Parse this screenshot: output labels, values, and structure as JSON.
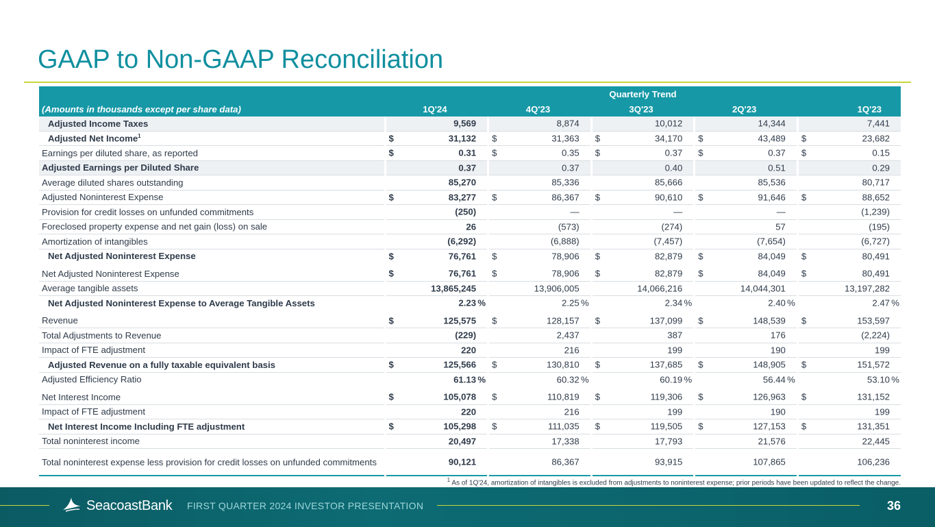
{
  "title": "GAAP to Non-GAAP Reconciliation",
  "table": {
    "note": "(Amounts in thousands except per share data)",
    "group_header": "Quarterly Trend",
    "periods": [
      "1Q'24",
      "4Q'23",
      "3Q'23",
      "2Q'23",
      "1Q'23"
    ],
    "rows": [
      {
        "label": "Adjusted Income Taxes",
        "values": [
          "9,569",
          "8,874",
          "10,012",
          "14,344",
          "7,441"
        ]
      },
      {
        "label": "Adjusted Net Income",
        "sup": "1",
        "values": [
          "31,132",
          "31,363",
          "34,170",
          "43,489",
          "23,682"
        ]
      },
      {
        "label": "Earnings per diluted share, as reported",
        "values": [
          "0.31",
          "0.35",
          "0.37",
          "0.37",
          "0.15"
        ]
      },
      {
        "label": "Adjusted Earnings per Diluted Share",
        "values": [
          "0.37",
          "0.37",
          "0.40",
          "0.51",
          "0.29"
        ]
      },
      {
        "label": "Average diluted shares outstanding",
        "values": [
          "85,270",
          "85,336",
          "85,666",
          "85,536",
          "80,717"
        ]
      },
      {
        "label": "Adjusted Noninterest Expense",
        "values": [
          "83,277",
          "86,367",
          "90,610",
          "91,646",
          "88,652"
        ]
      },
      {
        "label": "Provision for credit losses on unfunded commitments",
        "values": [
          "(250)",
          "—",
          "—",
          "—",
          "(1,239)"
        ]
      },
      {
        "label": "Foreclosed property expense and net gain (loss) on sale",
        "values": [
          "26",
          "(573)",
          "(274)",
          "57",
          "(195)"
        ]
      },
      {
        "label": "Amortization of intangibles",
        "values": [
          "(6,292)",
          "(6,888)",
          "(7,457)",
          "(7,654)",
          "(6,727)"
        ]
      },
      {
        "label": "Net Adjusted Noninterest Expense",
        "values": [
          "76,761",
          "78,906",
          "82,879",
          "84,049",
          "80,491"
        ]
      },
      {
        "label": "Net Adjusted Noninterest Expense",
        "values": [
          "76,761",
          "78,906",
          "82,879",
          "84,049",
          "80,491"
        ]
      },
      {
        "label": "Average tangible assets",
        "values": [
          "13,865,245",
          "13,906,005",
          "14,066,216",
          "14,044,301",
          "13,197,282"
        ]
      },
      {
        "label": "Net Adjusted Noninterest Expense to Average Tangible Assets",
        "values": [
          "2.23",
          "2.25",
          "2.34",
          "2.40",
          "2.47"
        ]
      },
      {
        "label": "Revenue",
        "values": [
          "125,575",
          "128,157",
          "137,099",
          "148,539",
          "153,597"
        ]
      },
      {
        "label": "Total Adjustments to Revenue",
        "values": [
          "(229)",
          "2,437",
          "387",
          "176",
          "(2,224)"
        ]
      },
      {
        "label": "Impact of FTE adjustment",
        "values": [
          "220",
          "216",
          "199",
          "190",
          "199"
        ]
      },
      {
        "label": "Adjusted Revenue on a fully taxable equivalent basis",
        "values": [
          "125,566",
          "130,810",
          "137,685",
          "148,905",
          "151,572"
        ]
      },
      {
        "label": "Adjusted Efficiency Ratio",
        "values": [
          "61.13",
          "60.32",
          "60.19",
          "56.44",
          "53.10"
        ]
      },
      {
        "label": "Net Interest Income",
        "values": [
          "105,078",
          "110,819",
          "119,306",
          "126,963",
          "131,152"
        ]
      },
      {
        "label": "Impact of FTE adjustment",
        "values": [
          "220",
          "216",
          "199",
          "190",
          "199"
        ]
      },
      {
        "label": "Net Interest Income Including FTE adjustment",
        "values": [
          "105,298",
          "111,035",
          "119,505",
          "127,153",
          "131,351"
        ]
      },
      {
        "label": "Total noninterest income",
        "values": [
          "20,497",
          "17,338",
          "17,793",
          "21,576",
          "22,445"
        ]
      },
      {
        "label": "Total noninterest expense less provision for credit losses on unfunded commitments",
        "values": [
          "90,121",
          "86,367",
          "93,915",
          "107,865",
          "106,236"
        ]
      }
    ]
  },
  "symbols": {
    "dollar": "$",
    "percent": "%"
  },
  "footnote": {
    "mark": "1",
    "text": "As of 1Q'24, amortization of intangibles is excluded from adjustments to noninterest expense; prior periods have been updated to reflect the change."
  },
  "footer": {
    "logo_text": "SeacoastBank",
    "logo_icon": "seagull-icon",
    "presentation": "FIRST QUARTER 2024 INVESTOR PRESENTATION",
    "page": "36"
  },
  "colors": {
    "title": "#0f8f9f",
    "header_bg": "#1698a6",
    "accent": "#c9d63a",
    "footer_bg": "#0b5b63"
  }
}
